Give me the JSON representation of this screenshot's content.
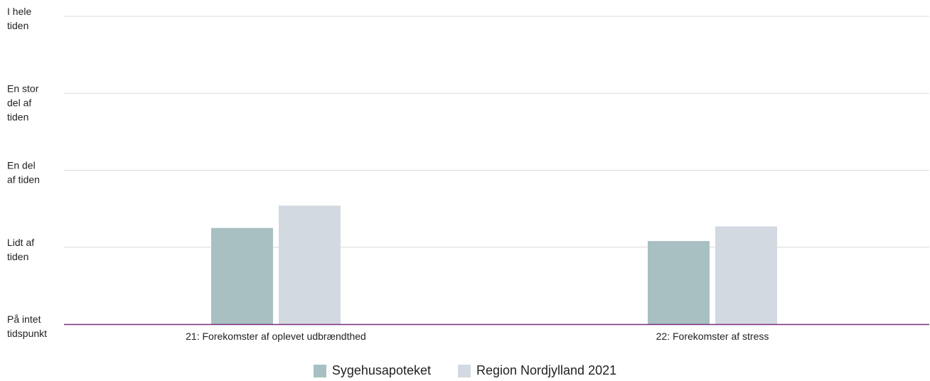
{
  "chart_data": {
    "type": "bar",
    "categories": [
      "21: Forekomster af oplevet udbrændthed",
      "22: Forekomster af stress"
    ],
    "y_levels": [
      {
        "value": 4,
        "label": [
          "I hele",
          "tiden"
        ]
      },
      {
        "value": 3,
        "label": [
          "En stor",
          "del af",
          "tiden"
        ]
      },
      {
        "value": 2,
        "label": [
          "En del",
          "af tiden"
        ]
      },
      {
        "value": 1,
        "label": [
          "Lidt af",
          "tiden"
        ]
      },
      {
        "value": 0,
        "label": [
          "På intet",
          "tidspunkt"
        ]
      }
    ],
    "ylim": [
      0,
      4
    ],
    "grid": true,
    "legend_position": "bottom-center",
    "series": [
      {
        "name": "Sygehusapoteket",
        "values": [
          1.25,
          1.08
        ],
        "color": "#a8c0c2"
      },
      {
        "name": "Region Nordjylland 2021",
        "values": [
          1.54,
          1.27
        ],
        "color": "#d3d9e0"
      }
    ],
    "axis_color": "#7a2a7a",
    "grid_color": "#d9d9d9"
  }
}
